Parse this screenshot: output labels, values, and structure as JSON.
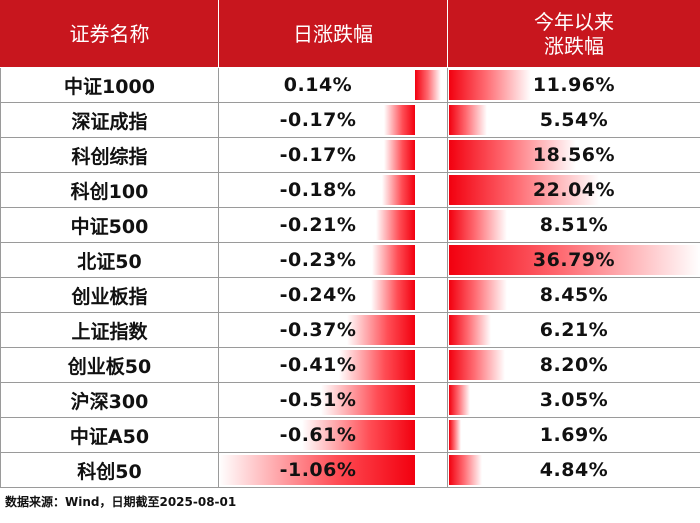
{
  "headers": {
    "name": "证券名称",
    "daily": "日涨跌幅",
    "ytd_line1": "今年以来",
    "ytd_line2": "涨跌幅"
  },
  "rows": [
    {
      "name": "中证1000",
      "daily": "0.14%",
      "ytd": "11.96%",
      "daily_num": 0.14,
      "ytd_num": 11.96
    },
    {
      "name": "深证成指",
      "daily": "-0.17%",
      "ytd": "5.54%",
      "daily_num": -0.17,
      "ytd_num": 5.54
    },
    {
      "name": "科创综指",
      "daily": "-0.17%",
      "ytd": "18.56%",
      "daily_num": -0.17,
      "ytd_num": 18.56
    },
    {
      "name": "科创100",
      "daily": "-0.18%",
      "ytd": "22.04%",
      "daily_num": -0.18,
      "ytd_num": 22.04
    },
    {
      "name": "中证500",
      "daily": "-0.21%",
      "ytd": "8.51%",
      "daily_num": -0.21,
      "ytd_num": 8.51
    },
    {
      "name": "北证50",
      "daily": "-0.23%",
      "ytd": "36.79%",
      "daily_num": -0.23,
      "ytd_num": 36.79
    },
    {
      "name": "创业板指",
      "daily": "-0.24%",
      "ytd": "8.45%",
      "daily_num": -0.24,
      "ytd_num": 8.45
    },
    {
      "name": "上证指数",
      "daily": "-0.37%",
      "ytd": "6.21%",
      "daily_num": -0.37,
      "ytd_num": 6.21
    },
    {
      "name": "创业板50",
      "daily": "-0.41%",
      "ytd": "8.20%",
      "daily_num": -0.41,
      "ytd_num": 8.2
    },
    {
      "name": "沪深300",
      "daily": "-0.51%",
      "ytd": "3.05%",
      "daily_num": -0.51,
      "ytd_num": 3.05
    },
    {
      "name": "中证A50",
      "daily": "-0.61%",
      "ytd": "1.69%",
      "daily_num": -0.61,
      "ytd_num": 1.69
    },
    {
      "name": "科创50",
      "daily": "-1.06%",
      "ytd": "4.84%",
      "daily_num": -1.06,
      "ytd_num": 4.84
    }
  ],
  "footer": "数据来源：Wind，日期截至2025-08-01",
  "colors": {
    "header_bg": "#c8161e",
    "bar": "#f2000f"
  }
}
